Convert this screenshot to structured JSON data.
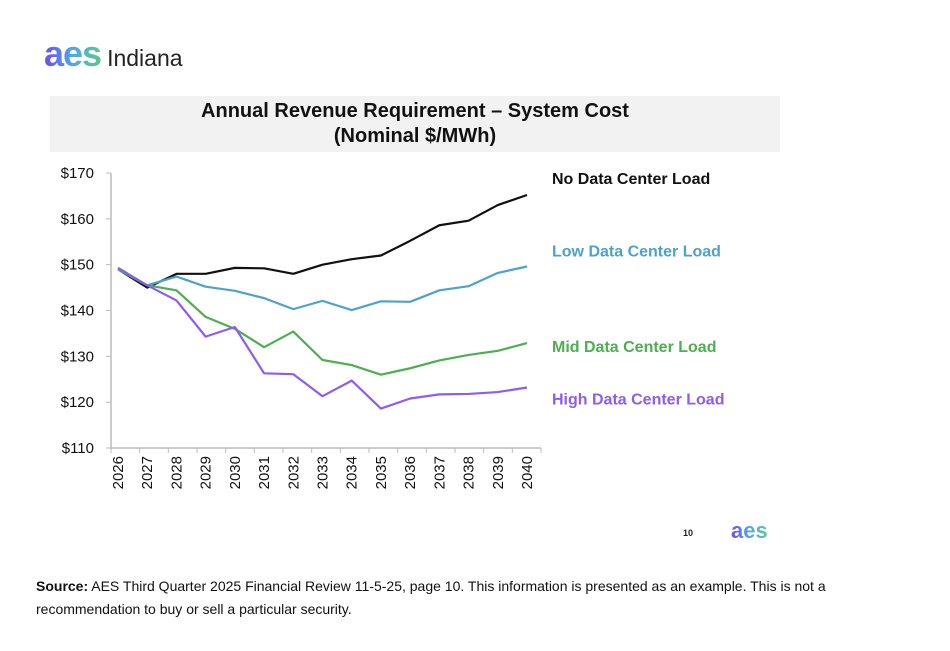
{
  "header": {
    "logo_mark": "aes",
    "logo_text": "Indiana"
  },
  "chart_data": {
    "type": "line",
    "title": "Annual Revenue Requirement – System Cost",
    "subtitle": "(Nominal $/MWh)",
    "xlabel": "",
    "ylabel": "",
    "x": [
      "2026",
      "2027",
      "2028",
      "2029",
      "2030",
      "2031",
      "2032",
      "2033",
      "2034",
      "2035",
      "2036",
      "2037",
      "2038",
      "2039",
      "2040"
    ],
    "ylim": [
      110,
      170
    ],
    "yticks": [
      "$110",
      "$120",
      "$130",
      "$140",
      "$150",
      "$160",
      "$170"
    ],
    "grid": false,
    "legend": "right, inline labels",
    "series": [
      {
        "name": "No Data Center Load",
        "color": "#111111",
        "values": [
          149,
          145,
          148,
          148,
          149.3,
          149.2,
          148,
          150,
          151.2,
          152,
          155.2,
          158.6,
          159.6,
          163,
          165.2
        ]
      },
      {
        "name": "Low Data Center Load",
        "color": "#4ba3cc",
        "values": [
          149,
          145.5,
          147.4,
          145.2,
          144.3,
          142.7,
          140.3,
          142.1,
          140.1,
          142,
          141.9,
          144.4,
          145.3,
          148.2,
          149.6
        ]
      },
      {
        "name": "Mid Data Center Load",
        "color": "#4caf50",
        "values": [
          149,
          145.5,
          144.4,
          138.6,
          136,
          132,
          135.4,
          129.2,
          128.1,
          126,
          127.4,
          129.1,
          130.3,
          131.2,
          132.9
        ]
      },
      {
        "name": "High Data Center Load",
        "color": "#8b5cf6",
        "values": [
          149.3,
          145.5,
          142.2,
          134.3,
          136.4,
          126.3,
          126.1,
          121.3,
          124.7,
          118.6,
          120.8,
          121.7,
          121.8,
          122.2,
          123.2
        ]
      }
    ]
  },
  "footer": {
    "page_number": "10",
    "logo_mark": "aes",
    "source_label": "Source:",
    "source_text": " AES Third Quarter 2025 Financial Review 11-5-25, page 10. This information is presented as an example. This is not a recommendation to buy or sell a particular security."
  }
}
